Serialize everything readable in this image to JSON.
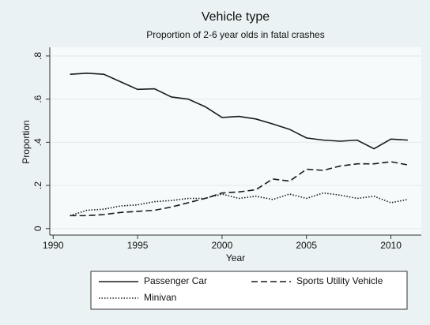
{
  "chart_data": {
    "type": "line",
    "title": "Vehicle type",
    "subtitle": "Proportion of 2-6 year olds in fatal crashes",
    "x_label": "Year",
    "y_label": "Proportion",
    "x": [
      1991,
      1992,
      1993,
      1994,
      1995,
      1996,
      1997,
      1998,
      1999,
      2000,
      2001,
      2002,
      2003,
      2004,
      2005,
      2006,
      2007,
      2008,
      2009,
      2010,
      2011
    ],
    "series": [
      {
        "name": "Passenger Car",
        "color": "#1a1a1a",
        "dash": "solid",
        "values": [
          0.715,
          0.72,
          0.715,
          0.68,
          0.645,
          0.648,
          0.61,
          0.6,
          0.565,
          0.515,
          0.52,
          0.508,
          0.485,
          0.46,
          0.42,
          0.41,
          0.405,
          0.41,
          0.37,
          0.415,
          0.41
        ]
      },
      {
        "name": "Sports Utility Vehicle",
        "color": "#1a1a1a",
        "dash": "dash",
        "values": [
          0.06,
          0.06,
          0.065,
          0.075,
          0.08,
          0.085,
          0.1,
          0.12,
          0.14,
          0.165,
          0.17,
          0.18,
          0.23,
          0.22,
          0.275,
          0.27,
          0.29,
          0.3,
          0.3,
          0.31,
          0.295
        ]
      },
      {
        "name": "Minivan",
        "color": "#1a1a1a",
        "dash": "dot",
        "values": [
          0.06,
          0.085,
          0.09,
          0.105,
          0.11,
          0.125,
          0.13,
          0.14,
          0.14,
          0.16,
          0.14,
          0.15,
          0.135,
          0.16,
          0.14,
          0.165,
          0.155,
          0.14,
          0.15,
          0.12,
          0.135
        ]
      }
    ],
    "xlim": [
      1989.8,
      2011.8
    ],
    "xticks": [
      1990,
      1995,
      2000,
      2005,
      2010
    ],
    "ylim": [
      -0.03,
      0.84
    ],
    "yticks": [
      0,
      {
        "value": 0.2,
        "label": ".2"
      },
      {
        "value": 0.4,
        "label": ".4"
      },
      {
        "value": 0.6,
        "label": ".6"
      },
      {
        "value": 0.8,
        "label": ".8"
      }
    ],
    "grid": true,
    "legend": "bottom"
  }
}
